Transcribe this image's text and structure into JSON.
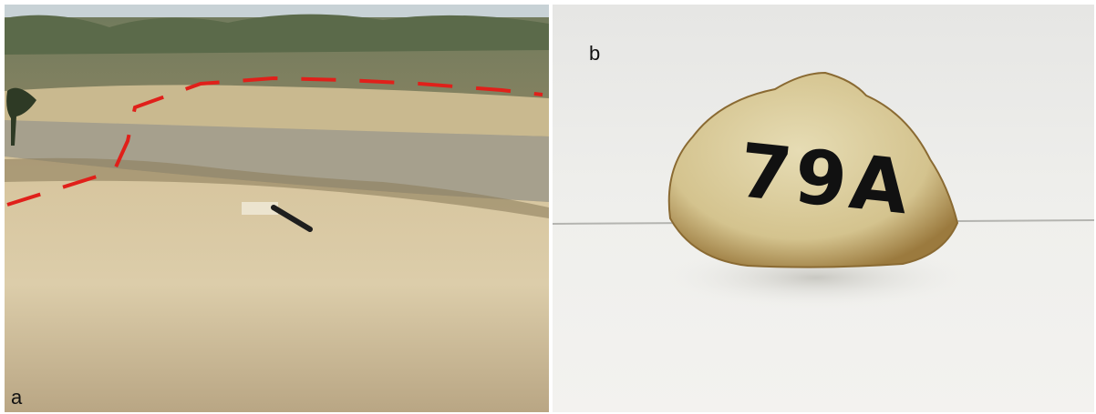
{
  "panels": [
    {
      "label": "a"
    },
    {
      "label": "b",
      "specimen_label": "79A"
    }
  ]
}
